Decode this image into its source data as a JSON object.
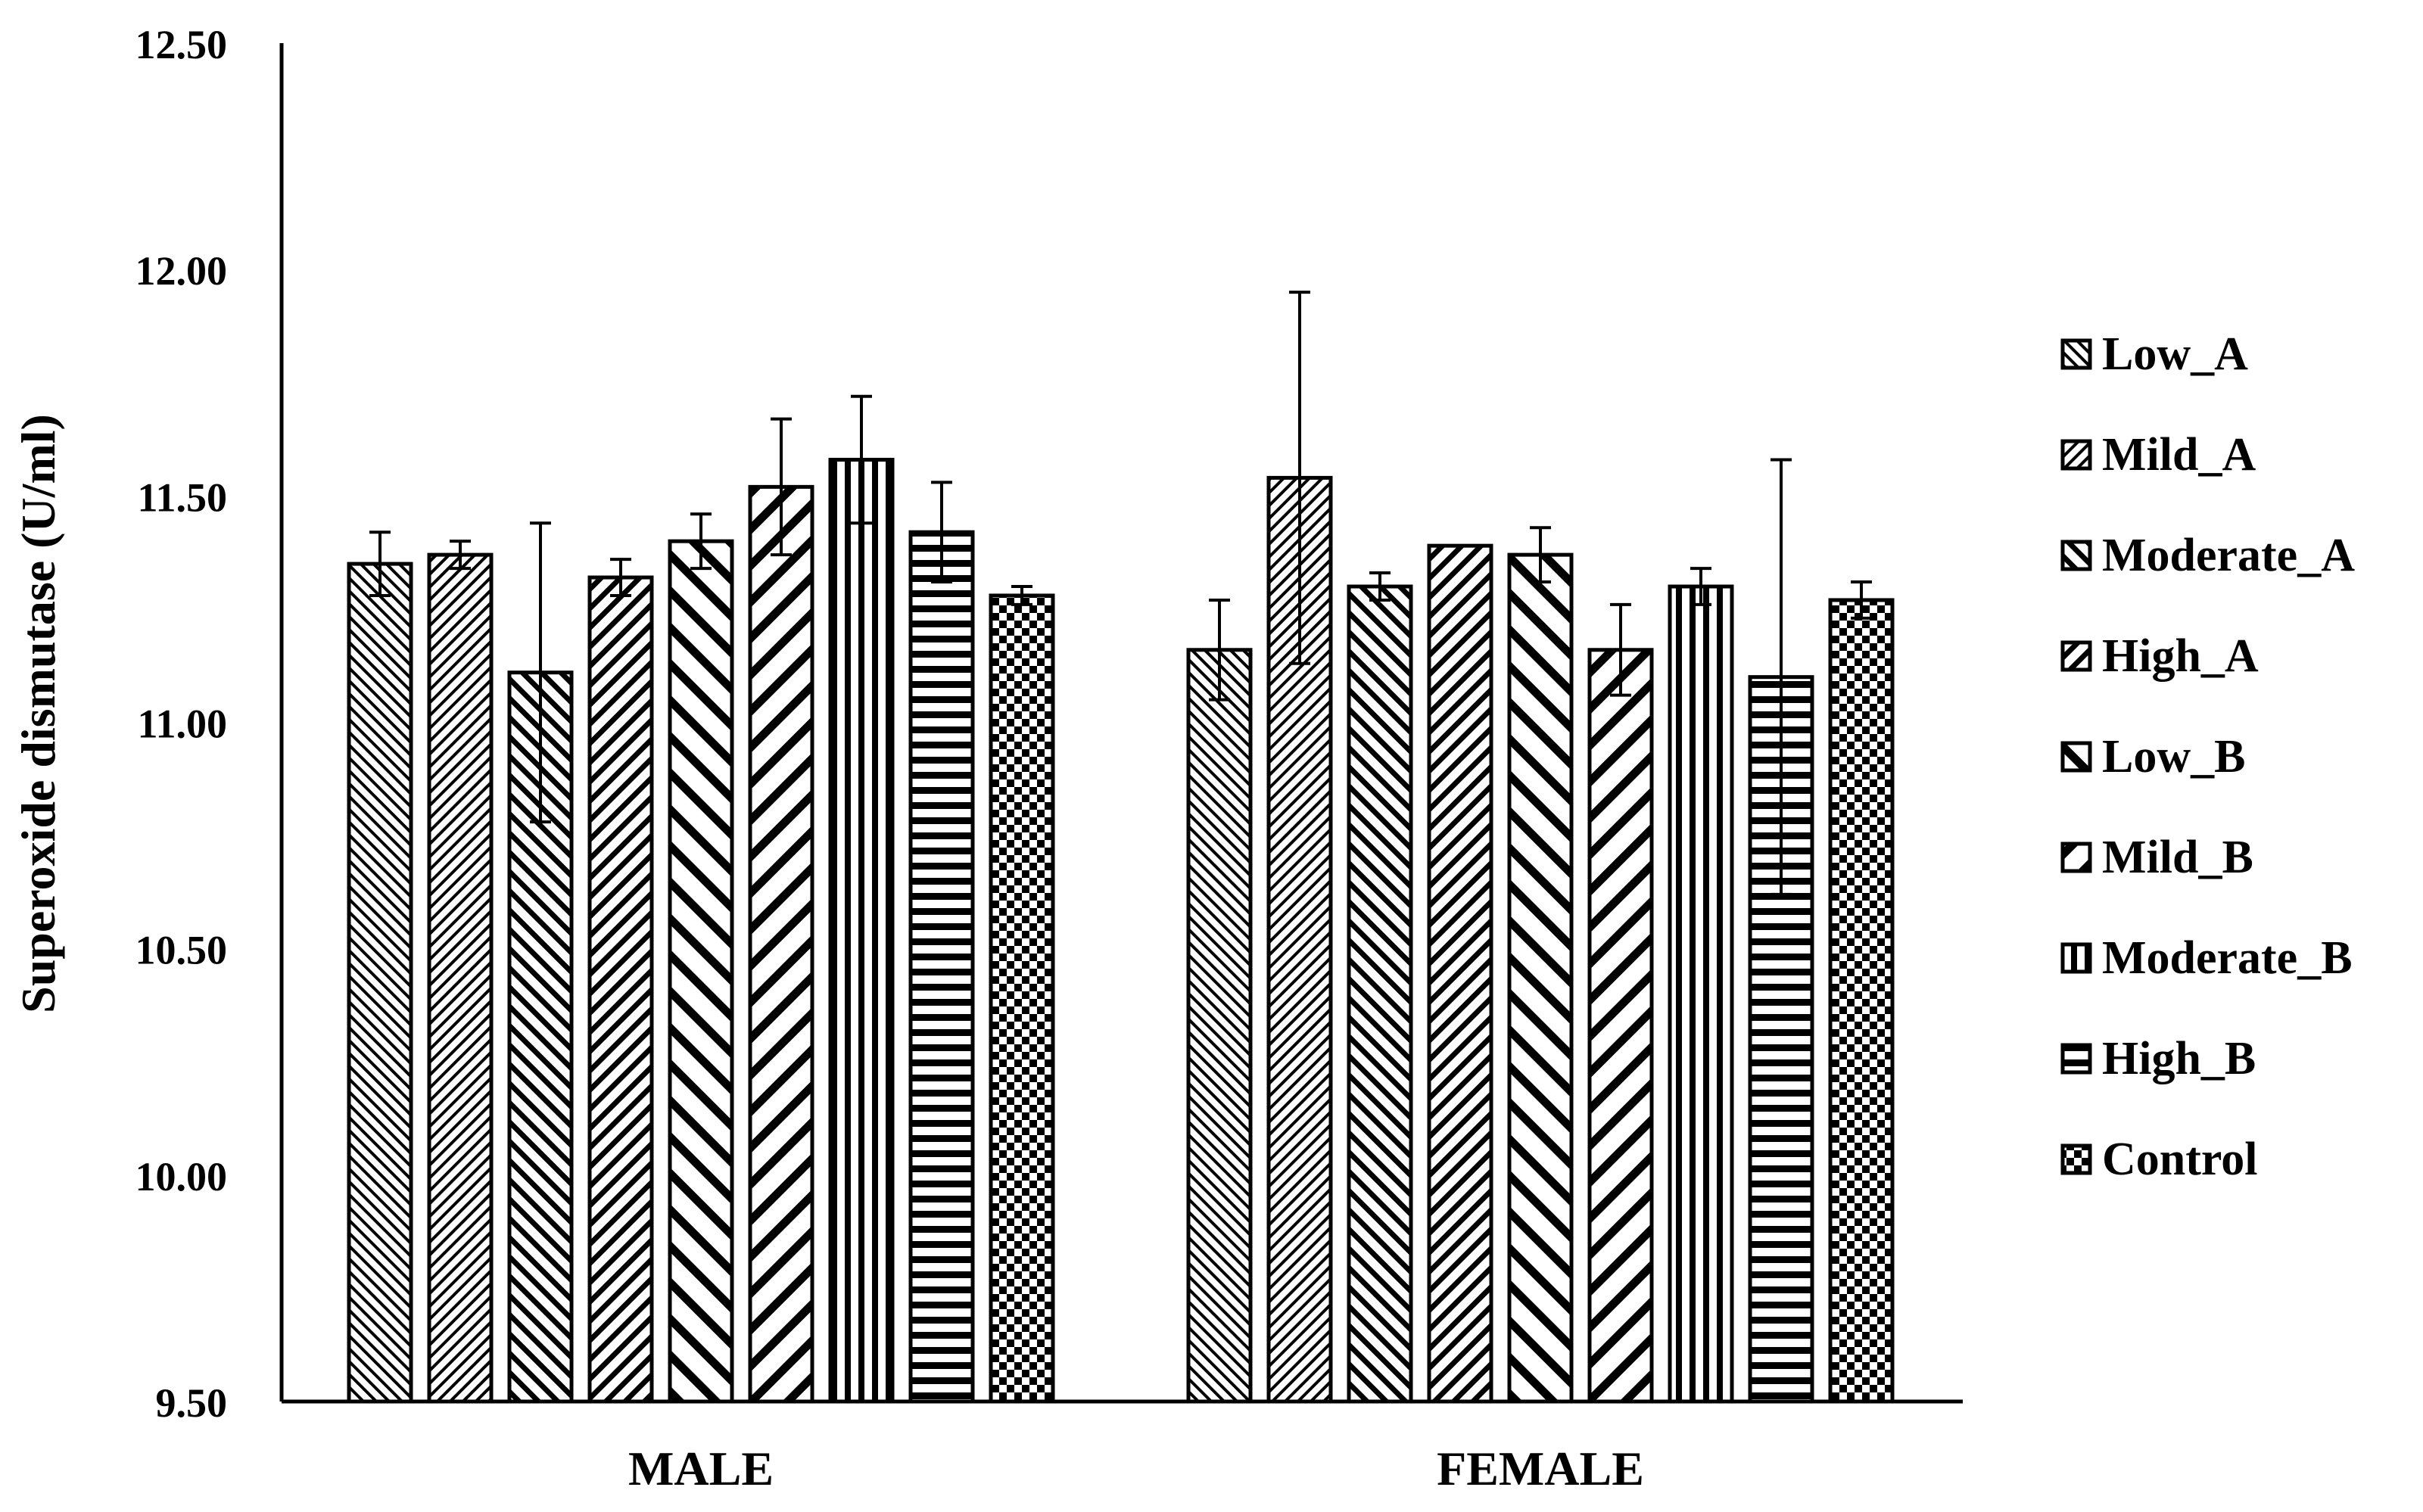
{
  "chart_data": {
    "type": "bar",
    "title": "",
    "xlabel": "",
    "ylabel": "Superoxide dismutase (U/ml)",
    "ylim": [
      9.5,
      12.5
    ],
    "yticks": [
      "9.50",
      "10.00",
      "10.50",
      "11.00",
      "11.50",
      "12.00",
      "12.50"
    ],
    "ytick_values": [
      9.5,
      10.0,
      10.5,
      11.0,
      11.5,
      12.0,
      12.5
    ],
    "categories": [
      "MALE",
      "FEMALE"
    ],
    "legend_position": "right",
    "grid": false,
    "series": [
      {
        "name": "Low_A",
        "pattern": "diag-fine-back",
        "values": [
          11.35,
          11.16
        ],
        "errors": [
          0.07,
          0.11
        ]
      },
      {
        "name": "Mild_A",
        "pattern": "diag-fine-fwd",
        "values": [
          11.37,
          11.54
        ],
        "errors": [
          0.03,
          0.41
        ]
      },
      {
        "name": "Moderate_A",
        "pattern": "diag-med-back",
        "values": [
          11.11,
          11.3
        ],
        "errors": [
          0.33,
          0.03
        ]
      },
      {
        "name": "High_A",
        "pattern": "diag-med-fwd",
        "values": [
          11.32,
          11.39
        ],
        "errors": [
          0.04,
          0.0
        ]
      },
      {
        "name": "Low_B",
        "pattern": "diag-wide-back",
        "values": [
          11.4,
          11.37
        ],
        "errors": [
          0.06,
          0.06
        ]
      },
      {
        "name": "Mild_B",
        "pattern": "diag-wide-fwd",
        "values": [
          11.52,
          11.16
        ],
        "errors": [
          0.15,
          0.1
        ]
      },
      {
        "name": "Moderate_B",
        "pattern": "vertical",
        "values": [
          11.58,
          11.3
        ],
        "errors": [
          0.14,
          0.04
        ]
      },
      {
        "name": "High_B",
        "pattern": "horizontal",
        "values": [
          11.42,
          11.1
        ],
        "errors": [
          0.11,
          0.48
        ]
      },
      {
        "name": "Control",
        "pattern": "checker",
        "values": [
          11.28,
          11.27
        ],
        "errors": [
          0.02,
          0.04
        ]
      }
    ]
  },
  "colors": {
    "ink": "#000000",
    "background": "#ffffff"
  }
}
